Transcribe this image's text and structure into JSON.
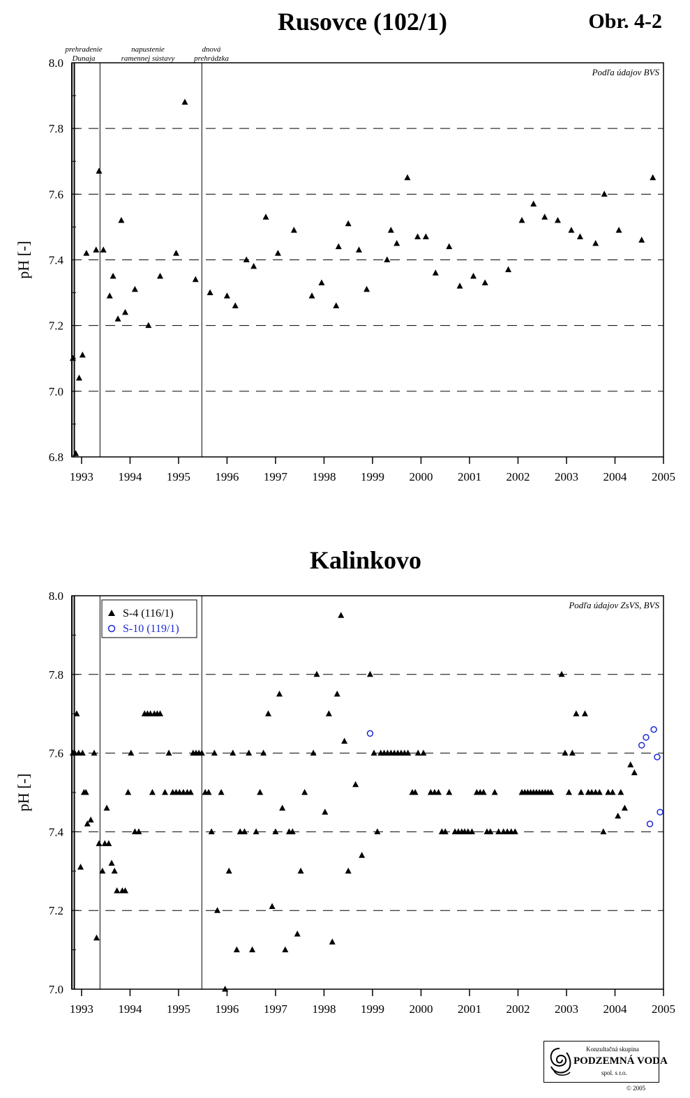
{
  "header": {
    "title_top": "Rusovce (102/1)",
    "figure_label": "Obr. 4-2",
    "title_bottom": "Kalinkovo"
  },
  "chart_data": [
    {
      "type": "scatter",
      "title": "Rusovce (102/1)",
      "ylabel": "pH [-]",
      "source_note": "Podľa údajov BVS",
      "xlim": [
        1992.8,
        2005.0
      ],
      "ylim": [
        6.8,
        8.0
      ],
      "xticks": [
        "1993",
        "1994",
        "1995",
        "1996",
        "1997",
        "1998",
        "1999",
        "2000",
        "2001",
        "2002",
        "2003",
        "2004",
        "2005"
      ],
      "yticks": [
        "6.8",
        "7.0",
        "7.2",
        "7.4",
        "7.6",
        "7.8",
        "8.0"
      ],
      "grid": "dashed horizontal",
      "event_lines": [
        {
          "x": 1992.8,
          "label": ""
        },
        {
          "x": 1992.85,
          "label": "prehradenie Dunaja"
        },
        {
          "x": 1993.38,
          "label": "napustenie ramennej sústavy"
        },
        {
          "x": 1995.48,
          "label": "dnová prehrádzka"
        }
      ],
      "series": [
        {
          "marker": "filled-triangle",
          "color": "#000000",
          "points": [
            [
              1992.82,
              7.1
            ],
            [
              1992.88,
              6.81
            ],
            [
              1992.95,
              7.04
            ],
            [
              1993.02,
              7.11
            ],
            [
              1993.1,
              7.42
            ],
            [
              1993.3,
              7.43
            ],
            [
              1993.36,
              7.67
            ],
            [
              1993.45,
              7.43
            ],
            [
              1993.58,
              7.29
            ],
            [
              1993.65,
              7.35
            ],
            [
              1993.75,
              7.22
            ],
            [
              1993.82,
              7.52
            ],
            [
              1993.9,
              7.24
            ],
            [
              1994.1,
              7.31
            ],
            [
              1994.38,
              7.2
            ],
            [
              1994.62,
              7.35
            ],
            [
              1994.95,
              7.42
            ],
            [
              1995.13,
              7.88
            ],
            [
              1995.35,
              7.34
            ],
            [
              1995.65,
              7.3
            ],
            [
              1996.0,
              7.29
            ],
            [
              1996.17,
              7.26
            ],
            [
              1996.4,
              7.4
            ],
            [
              1996.55,
              7.38
            ],
            [
              1996.8,
              7.53
            ],
            [
              1997.05,
              7.42
            ],
            [
              1997.38,
              7.49
            ],
            [
              1997.75,
              7.29
            ],
            [
              1997.95,
              7.33
            ],
            [
              1998.25,
              7.26
            ],
            [
              1998.3,
              7.44
            ],
            [
              1998.5,
              7.51
            ],
            [
              1998.72,
              7.43
            ],
            [
              1998.88,
              7.31
            ],
            [
              1999.3,
              7.4
            ],
            [
              1999.38,
              7.49
            ],
            [
              1999.5,
              7.45
            ],
            [
              1999.72,
              7.65
            ],
            [
              1999.93,
              7.47
            ],
            [
              2000.1,
              7.47
            ],
            [
              2000.3,
              7.36
            ],
            [
              2000.58,
              7.44
            ],
            [
              2000.8,
              7.32
            ],
            [
              2001.08,
              7.35
            ],
            [
              2001.32,
              7.33
            ],
            [
              2001.8,
              7.37
            ],
            [
              2002.08,
              7.52
            ],
            [
              2002.32,
              7.57
            ],
            [
              2002.55,
              7.53
            ],
            [
              2002.82,
              7.52
            ],
            [
              2003.1,
              7.49
            ],
            [
              2003.28,
              7.47
            ],
            [
              2003.6,
              7.45
            ],
            [
              2003.78,
              7.6
            ],
            [
              2004.08,
              7.49
            ],
            [
              2004.55,
              7.46
            ],
            [
              2004.78,
              7.65
            ]
          ]
        }
      ]
    },
    {
      "type": "scatter",
      "title": "Kalinkovo",
      "ylabel": "pH [-]",
      "source_note": "Podľa údajov ZsVS, BVS",
      "xlim": [
        1992.8,
        2005.0
      ],
      "ylim": [
        7.0,
        8.0
      ],
      "xticks": [
        "1993",
        "1994",
        "1995",
        "1996",
        "1997",
        "1998",
        "1999",
        "2000",
        "2001",
        "2002",
        "2003",
        "2004",
        "2005"
      ],
      "yticks": [
        "7.0",
        "7.2",
        "7.4",
        "7.6",
        "7.8",
        "8.0"
      ],
      "grid": "dashed horizontal",
      "legend_position": "top-left",
      "event_lines": [
        {
          "x": 1992.8,
          "label": ""
        },
        {
          "x": 1992.85,
          "label": ""
        },
        {
          "x": 1993.38,
          "label": ""
        },
        {
          "x": 1995.48,
          "label": ""
        }
      ],
      "series": [
        {
          "name": "S-4 (116/1)",
          "marker": "filled-triangle",
          "color": "#000000",
          "points": [
            [
              1992.82,
              7.6
            ],
            [
              1992.86,
              7.6
            ],
            [
              1992.9,
              7.7
            ],
            [
              1992.94,
              7.6
            ],
            [
              1992.98,
              7.31
            ],
            [
              1993.02,
              7.6
            ],
            [
              1993.05,
              7.5
            ],
            [
              1993.09,
              7.5
            ],
            [
              1993.12,
              7.42
            ],
            [
              1993.19,
              7.43
            ],
            [
              1993.26,
              7.6
            ],
            [
              1993.31,
              7.13
            ],
            [
              1993.36,
              7.37
            ],
            [
              1993.43,
              7.3
            ],
            [
              1993.48,
              7.37
            ],
            [
              1993.52,
              7.46
            ],
            [
              1993.56,
              7.37
            ],
            [
              1993.62,
              7.32
            ],
            [
              1993.68,
              7.3
            ],
            [
              1993.73,
              7.25
            ],
            [
              1993.84,
              7.25
            ],
            [
              1993.9,
              7.25
            ],
            [
              1993.96,
              7.5
            ],
            [
              1994.02,
              7.6
            ],
            [
              1994.1,
              7.4
            ],
            [
              1994.18,
              7.4
            ],
            [
              1994.3,
              7.7
            ],
            [
              1994.36,
              7.7
            ],
            [
              1994.42,
              7.7
            ],
            [
              1994.46,
              7.5
            ],
            [
              1994.5,
              7.7
            ],
            [
              1994.56,
              7.7
            ],
            [
              1994.62,
              7.7
            ],
            [
              1994.72,
              7.5
            ],
            [
              1994.8,
              7.6
            ],
            [
              1994.88,
              7.5
            ],
            [
              1994.95,
              7.5
            ],
            [
              1995.02,
              7.5
            ],
            [
              1995.1,
              7.5
            ],
            [
              1995.18,
              7.5
            ],
            [
              1995.25,
              7.5
            ],
            [
              1995.3,
              7.6
            ],
            [
              1995.36,
              7.6
            ],
            [
              1995.42,
              7.6
            ],
            [
              1995.48,
              7.6
            ],
            [
              1995.55,
              7.5
            ],
            [
              1995.62,
              7.5
            ],
            [
              1995.68,
              7.4
            ],
            [
              1995.74,
              7.6
            ],
            [
              1995.8,
              7.2
            ],
            [
              1995.88,
              7.5
            ],
            [
              1995.96,
              7.0
            ],
            [
              1996.04,
              7.3
            ],
            [
              1996.12,
              7.6
            ],
            [
              1996.2,
              7.1
            ],
            [
              1996.27,
              7.4
            ],
            [
              1996.36,
              7.4
            ],
            [
              1996.45,
              7.6
            ],
            [
              1996.52,
              7.1
            ],
            [
              1996.6,
              7.4
            ],
            [
              1996.68,
              7.5
            ],
            [
              1996.75,
              7.6
            ],
            [
              1996.85,
              7.7
            ],
            [
              1996.93,
              7.21
            ],
            [
              1997.0,
              7.4
            ],
            [
              1997.08,
              7.75
            ],
            [
              1997.14,
              7.46
            ],
            [
              1997.2,
              7.1
            ],
            [
              1997.28,
              7.4
            ],
            [
              1997.35,
              7.4
            ],
            [
              1997.45,
              7.14
            ],
            [
              1997.52,
              7.3
            ],
            [
              1997.6,
              7.5
            ],
            [
              1997.78,
              7.6
            ],
            [
              1997.85,
              7.8
            ],
            [
              1998.02,
              7.45
            ],
            [
              1998.1,
              7.7
            ],
            [
              1998.17,
              7.12
            ],
            [
              1998.27,
              7.75
            ],
            [
              1998.35,
              7.95
            ],
            [
              1998.42,
              7.63
            ],
            [
              1998.5,
              7.3
            ],
            [
              1998.65,
              7.52
            ],
            [
              1998.78,
              7.34
            ],
            [
              1998.95,
              7.8
            ],
            [
              1999.03,
              7.6
            ],
            [
              1999.1,
              7.4
            ],
            [
              1999.17,
              7.6
            ],
            [
              1999.24,
              7.6
            ],
            [
              1999.31,
              7.6
            ],
            [
              1999.38,
              7.6
            ],
            [
              1999.45,
              7.6
            ],
            [
              1999.52,
              7.6
            ],
            [
              1999.59,
              7.6
            ],
            [
              1999.66,
              7.6
            ],
            [
              1999.73,
              7.6
            ],
            [
              1999.82,
              7.5
            ],
            [
              1999.88,
              7.5
            ],
            [
              1999.94,
              7.6
            ],
            [
              2000.05,
              7.6
            ],
            [
              2000.2,
              7.5
            ],
            [
              2000.28,
              7.5
            ],
            [
              2000.36,
              7.5
            ],
            [
              2000.43,
              7.4
            ],
            [
              2000.5,
              7.4
            ],
            [
              2000.58,
              7.5
            ],
            [
              2000.7,
              7.4
            ],
            [
              2000.77,
              7.4
            ],
            [
              2000.84,
              7.4
            ],
            [
              2000.9,
              7.4
            ],
            [
              2000.97,
              7.4
            ],
            [
              2001.05,
              7.4
            ],
            [
              2001.15,
              7.5
            ],
            [
              2001.22,
              7.5
            ],
            [
              2001.29,
              7.5
            ],
            [
              2001.36,
              7.4
            ],
            [
              2001.43,
              7.4
            ],
            [
              2001.52,
              7.5
            ],
            [
              2001.6,
              7.4
            ],
            [
              2001.7,
              7.4
            ],
            [
              2001.78,
              7.4
            ],
            [
              2001.86,
              7.4
            ],
            [
              2001.94,
              7.4
            ],
            [
              2002.08,
              7.5
            ],
            [
              2002.14,
              7.5
            ],
            [
              2002.2,
              7.5
            ],
            [
              2002.26,
              7.5
            ],
            [
              2002.32,
              7.5
            ],
            [
              2002.38,
              7.5
            ],
            [
              2002.44,
              7.5
            ],
            [
              2002.5,
              7.5
            ],
            [
              2002.56,
              7.5
            ],
            [
              2002.62,
              7.5
            ],
            [
              2002.68,
              7.5
            ],
            [
              2002.9,
              7.8
            ],
            [
              2002.97,
              7.6
            ],
            [
              2003.05,
              7.5
            ],
            [
              2003.12,
              7.6
            ],
            [
              2003.2,
              7.7
            ],
            [
              2003.3,
              7.5
            ],
            [
              2003.38,
              7.7
            ],
            [
              2003.45,
              7.5
            ],
            [
              2003.52,
              7.5
            ],
            [
              2003.6,
              7.5
            ],
            [
              2003.68,
              7.5
            ],
            [
              2003.76,
              7.4
            ],
            [
              2003.86,
              7.5
            ],
            [
              2003.95,
              7.5
            ],
            [
              2004.06,
              7.44
            ],
            [
              2004.12,
              7.5
            ],
            [
              2004.2,
              7.46
            ],
            [
              2004.32,
              7.57
            ],
            [
              2004.4,
              7.55
            ]
          ]
        },
        {
          "name": "S-10 (119/1)",
          "marker": "open-circle",
          "color": "#1a2ad0",
          "points": [
            [
              1998.95,
              7.65
            ],
            [
              2004.55,
              7.62
            ],
            [
              2004.64,
              7.64
            ],
            [
              2004.72,
              7.42
            ],
            [
              2004.8,
              7.66
            ],
            [
              2004.87,
              7.59
            ],
            [
              2004.93,
              7.45
            ]
          ]
        }
      ]
    }
  ],
  "logo": {
    "line1": "Konzultačná skupina",
    "line2": "PODZEMNÁ VODA",
    "line3": "spol. s r.o."
  },
  "copyright": "© 2005"
}
